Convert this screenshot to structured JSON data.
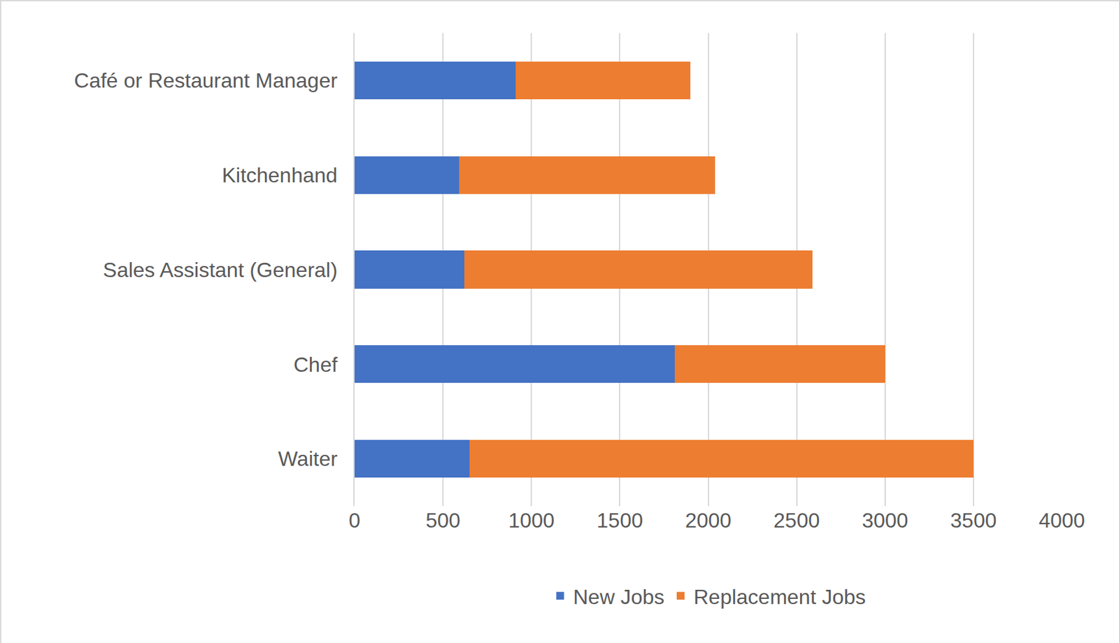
{
  "chart_data": {
    "type": "bar",
    "orientation": "horizontal",
    "stacked": true,
    "grid": true,
    "legend": "bottom",
    "categories": [
      "Café or Restaurant Manager",
      "Kitchenhand",
      "Sales Assistant (General)",
      "Chef",
      "Waiter"
    ],
    "series": [
      {
        "name": "New Jobs",
        "color": "#4472c4",
        "values": [
          910,
          590,
          620,
          1810,
          650
        ]
      },
      {
        "name": "Replacement Jobs",
        "color": "#ed7d31",
        "values": [
          990,
          1450,
          1970,
          1190,
          2850
        ]
      }
    ],
    "xlim": [
      0,
      4000
    ],
    "xticks": [
      0,
      500,
      1000,
      1500,
      2000,
      2500,
      3000,
      3500,
      4000
    ]
  }
}
